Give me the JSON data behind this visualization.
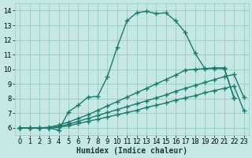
{
  "xlabel": "Humidex (Indice chaleur)",
  "bg_color": "#c5e8e5",
  "grid_color": "#9dcfcb",
  "line_color": "#1a7a6e",
  "line_width": 1.0,
  "marker": "+",
  "marker_size": 4,
  "marker_edge_width": 1.0,
  "xlim": [
    -0.5,
    23.5
  ],
  "ylim": [
    5.5,
    14.5
  ],
  "xticks": [
    0,
    1,
    2,
    3,
    4,
    5,
    6,
    7,
    8,
    9,
    10,
    11,
    12,
    13,
    14,
    15,
    16,
    17,
    18,
    19,
    20,
    21,
    22,
    23
  ],
  "yticks": [
    6,
    7,
    8,
    9,
    10,
    11,
    12,
    13,
    14
  ],
  "series": [
    {
      "x": [
        0,
        1,
        2,
        3,
        4,
        5,
        6,
        7,
        8,
        9,
        10,
        11,
        12,
        13,
        14,
        15,
        16,
        17,
        18,
        19,
        20,
        21,
        22
      ],
      "y": [
        6.0,
        6.0,
        6.0,
        6.0,
        5.85,
        7.1,
        7.55,
        8.1,
        8.15,
        9.5,
        11.5,
        13.3,
        13.85,
        13.95,
        13.8,
        13.85,
        13.3,
        12.5,
        11.1,
        10.05,
        10.05,
        10.05,
        8.05
      ]
    },
    {
      "x": [
        0,
        1,
        2,
        3,
        4,
        5,
        6,
        7,
        8,
        9,
        10,
        11,
        12,
        13,
        14,
        15,
        16,
        17,
        18,
        19,
        20,
        21,
        22,
        23
      ],
      "y": [
        6.0,
        6.0,
        6.0,
        6.0,
        6.05,
        6.15,
        6.3,
        6.45,
        6.6,
        6.75,
        6.9,
        7.05,
        7.2,
        7.4,
        7.55,
        7.7,
        7.9,
        8.05,
        8.2,
        8.4,
        8.55,
        8.7,
        8.85,
        7.2
      ]
    },
    {
      "x": [
        0,
        1,
        2,
        3,
        4,
        5,
        6,
        7,
        8,
        9,
        10,
        11,
        12,
        13,
        14,
        15,
        16,
        17,
        18,
        19,
        20,
        21,
        22,
        23
      ],
      "y": [
        6.0,
        6.0,
        6.0,
        6.0,
        6.1,
        6.25,
        6.45,
        6.65,
        6.85,
        7.05,
        7.25,
        7.45,
        7.65,
        7.85,
        8.05,
        8.25,
        8.5,
        8.7,
        8.9,
        9.1,
        9.3,
        9.5,
        9.65,
        8.1
      ]
    },
    {
      "x": [
        0,
        1,
        2,
        3,
        4,
        5,
        6,
        7,
        8,
        9,
        10,
        11,
        12,
        13,
        14,
        15,
        16,
        17,
        18,
        19,
        20,
        21,
        22
      ],
      "y": [
        6.0,
        6.0,
        6.0,
        6.05,
        6.2,
        6.4,
        6.65,
        6.9,
        7.2,
        7.5,
        7.8,
        8.1,
        8.4,
        8.7,
        9.0,
        9.3,
        9.6,
        9.95,
        10.0,
        10.05,
        10.1,
        10.1,
        8.05
      ]
    }
  ]
}
